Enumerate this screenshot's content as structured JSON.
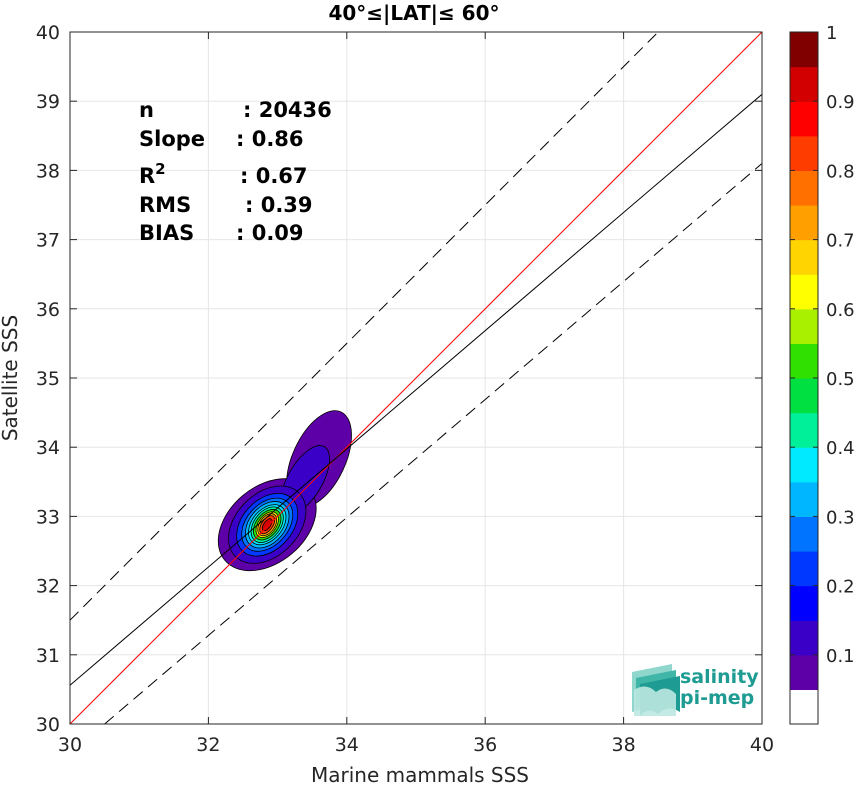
{
  "chart_data": {
    "type": "contour",
    "title": "40°≤|LAT|≤ 60°",
    "xlabel": "Marine mammals SSS",
    "ylabel": "Satellite SSS",
    "xlim": [
      30,
      40
    ],
    "ylim": [
      30,
      40
    ],
    "xticks": [
      "30",
      "32",
      "34",
      "36",
      "38",
      "40"
    ],
    "yticks": [
      "30",
      "31",
      "32",
      "33",
      "34",
      "35",
      "36",
      "37",
      "38",
      "39",
      "40"
    ],
    "grid": true,
    "stats": [
      {
        "label": "n",
        "value": ": 20436"
      },
      {
        "label": "Slope",
        "value": ": 0.86"
      },
      {
        "label": "R",
        "sup": "2",
        "value": ": 0.67"
      },
      {
        "label": "RMS",
        "value": ": 0.39"
      },
      {
        "label": "BIAS",
        "value": ": 0.09"
      }
    ],
    "lines": [
      {
        "role": "identity",
        "color": "#ff0000",
        "style": "solid",
        "points": [
          [
            30,
            30
          ],
          [
            40,
            40
          ]
        ]
      },
      {
        "role": "regression",
        "color": "#000000",
        "style": "solid",
        "points": [
          [
            30,
            30.56
          ],
          [
            40,
            39.1
          ]
        ]
      },
      {
        "role": "upper-bound",
        "color": "#000000",
        "style": "dashed",
        "points": [
          [
            30,
            31.5
          ],
          [
            38.5,
            40
          ]
        ]
      },
      {
        "role": "lower-bound",
        "color": "#000000",
        "style": "dashed",
        "points": [
          [
            30.5,
            30
          ],
          [
            40,
            38.1
          ]
        ]
      }
    ],
    "density_center": [
      32.85,
      32.88
    ],
    "density_levels": [
      {
        "level": 0.05,
        "rx": 0.55,
        "ry": 0.8,
        "angle": 50
      },
      {
        "level": 0.1,
        "rx": 0.45,
        "ry": 0.65,
        "angle": 45
      },
      {
        "level": 0.2,
        "rx": 0.36,
        "ry": 0.52,
        "angle": 43
      },
      {
        "level": 0.25,
        "rx": 0.3,
        "ry": 0.44,
        "angle": 42
      },
      {
        "level": 0.3,
        "rx": 0.26,
        "ry": 0.38,
        "angle": 40
      },
      {
        "level": 0.35,
        "rx": 0.22,
        "ry": 0.33,
        "angle": 40
      },
      {
        "level": 0.4,
        "rx": 0.19,
        "ry": 0.29,
        "angle": 38
      },
      {
        "level": 0.5,
        "rx": 0.16,
        "ry": 0.25,
        "angle": 38
      },
      {
        "level": 0.6,
        "rx": 0.13,
        "ry": 0.21,
        "angle": 36
      },
      {
        "level": 0.7,
        "rx": 0.11,
        "ry": 0.18,
        "angle": 35
      },
      {
        "level": 0.8,
        "rx": 0.08,
        "ry": 0.15,
        "angle": 35
      },
      {
        "level": 0.9,
        "rx": 0.05,
        "ry": 0.1,
        "angle": 35
      }
    ],
    "colorbar": {
      "range": [
        0,
        1
      ],
      "ticks": [
        "0.1",
        "0.2",
        "0.3",
        "0.4",
        "0.5",
        "0.6",
        "0.7",
        "0.8",
        "0.9",
        "1"
      ],
      "colors": [
        "#ffffff",
        "#5e00a8",
        "#3a00c8",
        "#0000ff",
        "#0038ff",
        "#0074ff",
        "#00b6ff",
        "#00eaff",
        "#00f09a",
        "#00e040",
        "#30e000",
        "#a8f000",
        "#ffff00",
        "#ffd400",
        "#ffa000",
        "#ff7000",
        "#ff3c00",
        "#ff0000",
        "#d20000",
        "#800000"
      ]
    }
  },
  "logo": {
    "line1": "salinity",
    "line2": "pi-mep"
  }
}
